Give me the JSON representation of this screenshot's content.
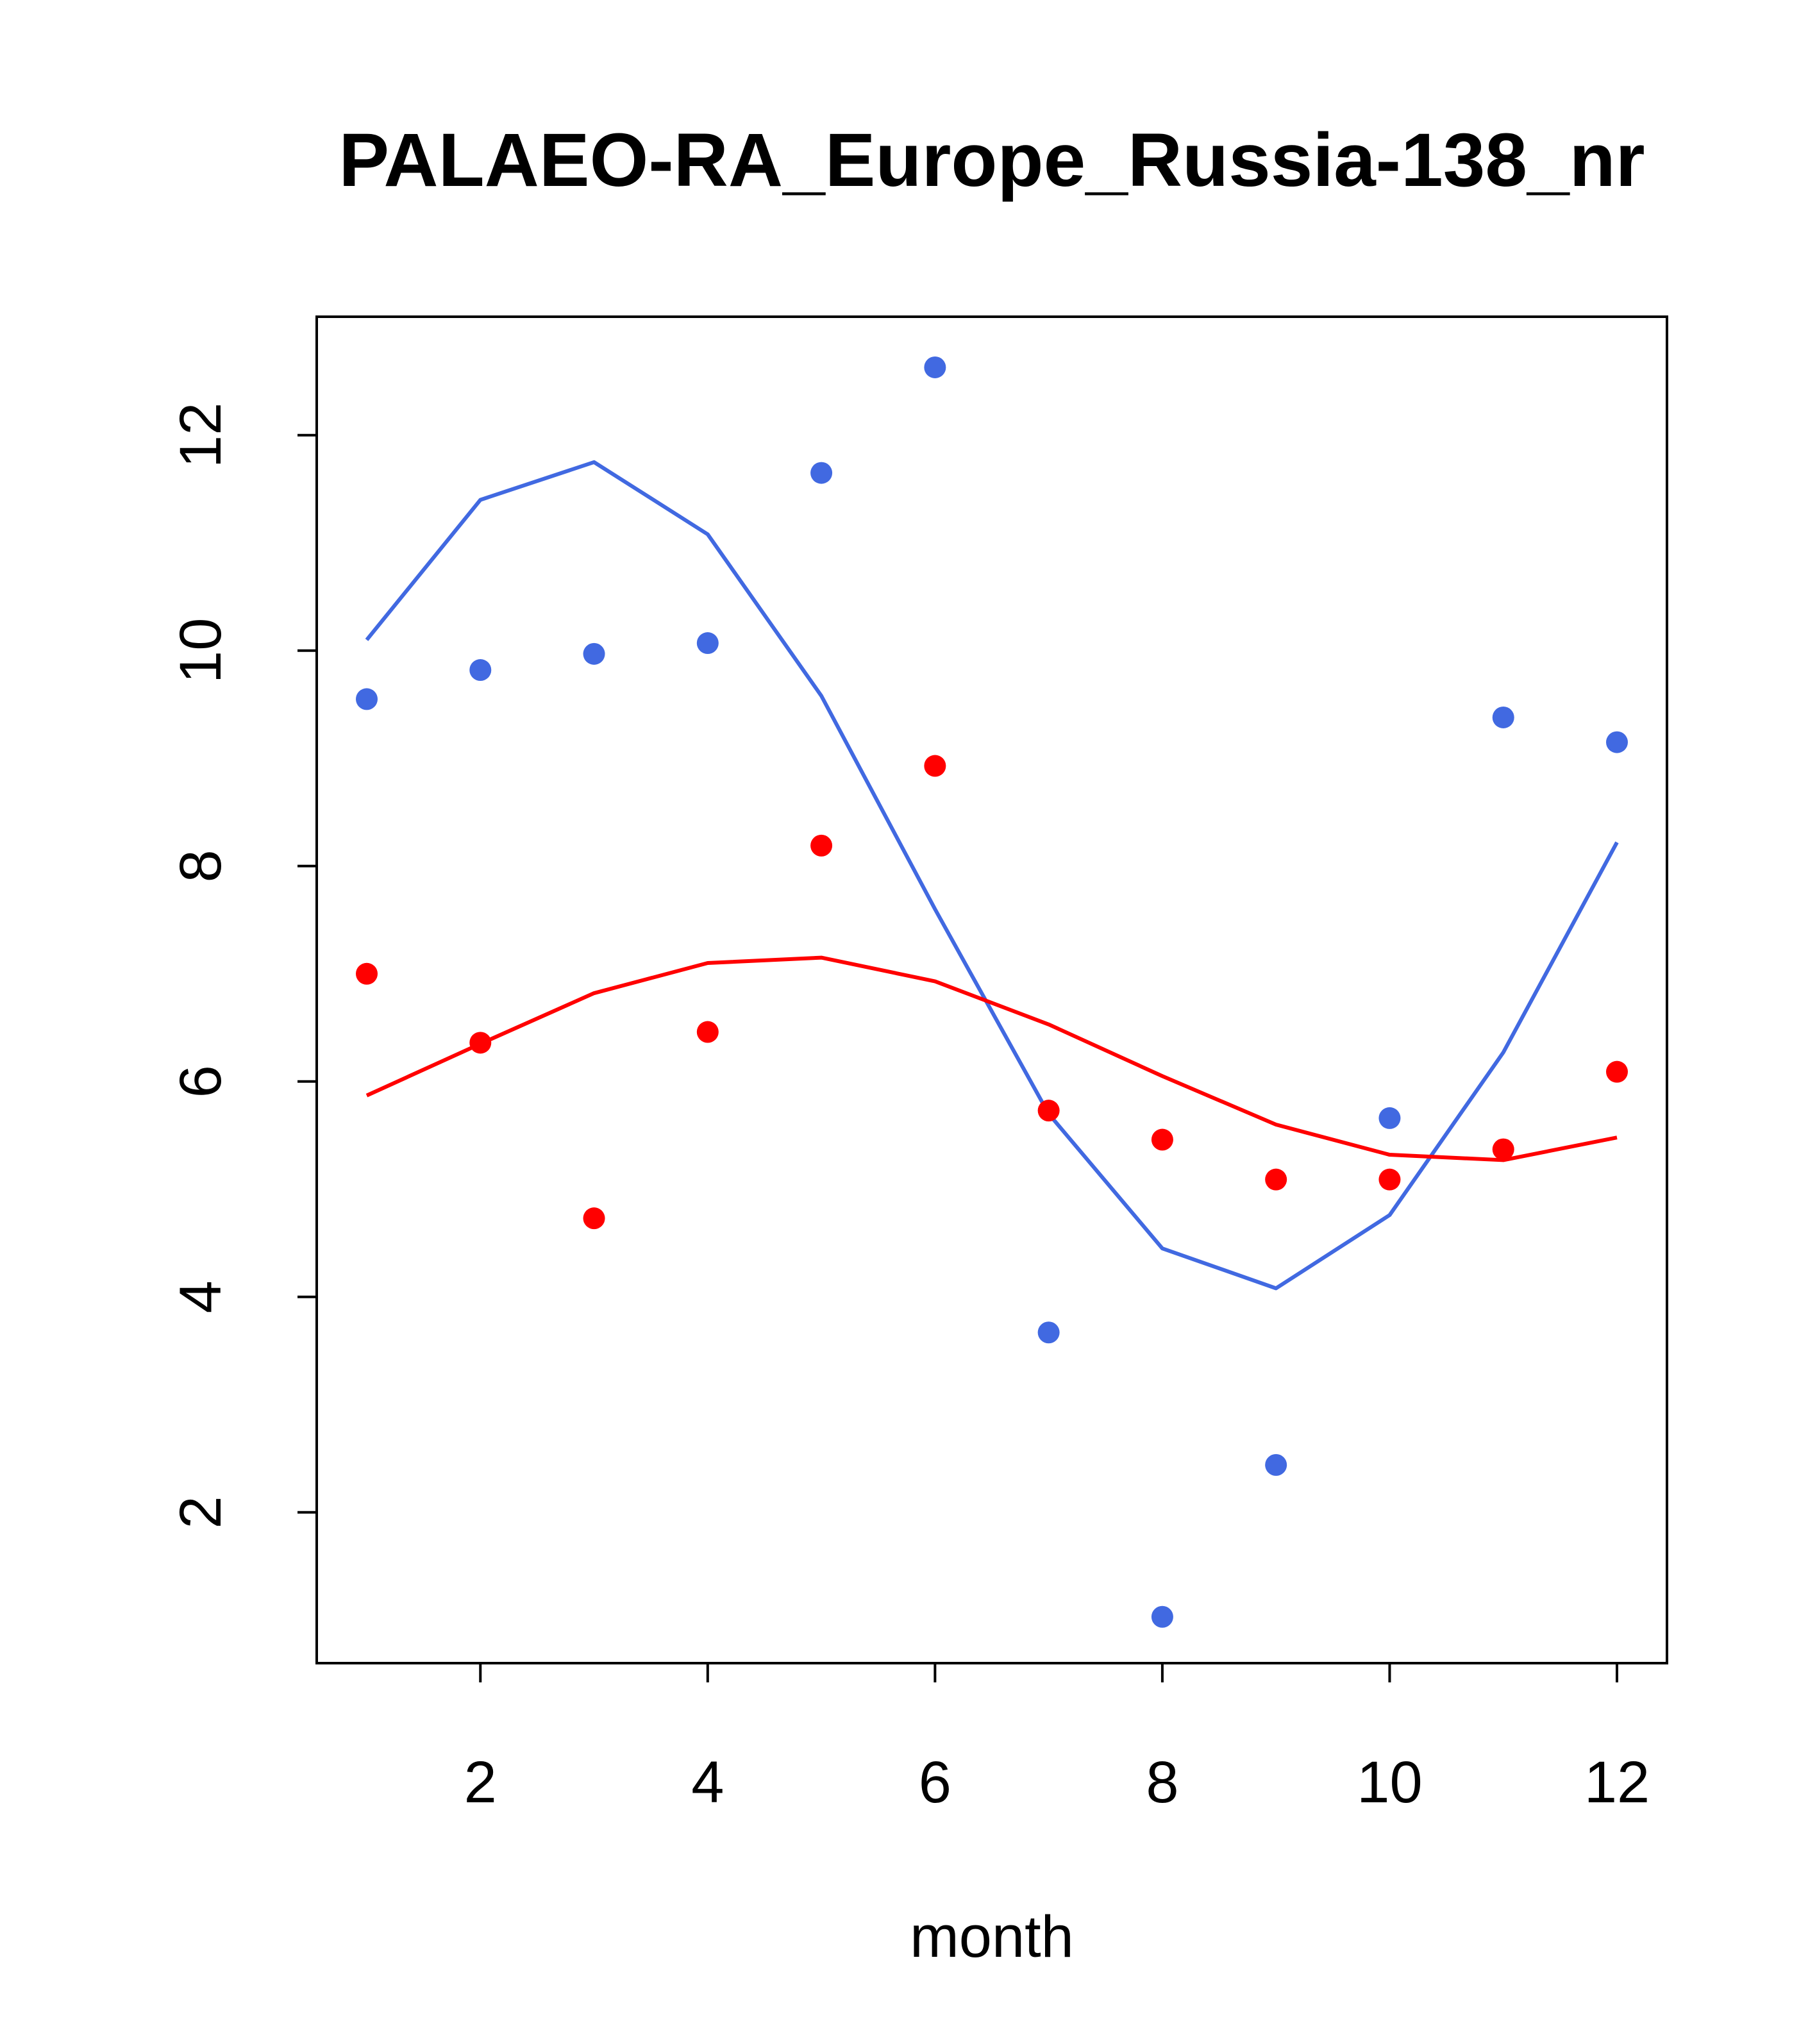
{
  "chart_data": {
    "type": "scatter",
    "title": "PALAEO-RA_Europe_Russia-138_nr",
    "xlabel": "month",
    "ylabel": "",
    "xlim": [
      0.56,
      12.44
    ],
    "ylim": [
      0.6,
      13.1
    ],
    "xticks": [
      2,
      4,
      6,
      8,
      10,
      12
    ],
    "yticks": [
      2,
      4,
      6,
      8,
      10,
      12
    ],
    "grid": false,
    "x": [
      1,
      2,
      3,
      4,
      5,
      6,
      7,
      8,
      9,
      10,
      11,
      12
    ],
    "series": [
      {
        "name": "blue points",
        "kind": "points",
        "color": "#4169E1",
        "values": [
          9.55,
          9.82,
          9.97,
          10.07,
          11.65,
          12.63,
          3.67,
          1.03,
          2.44,
          5.66,
          9.38,
          9.15
        ]
      },
      {
        "name": "blue curve",
        "kind": "line",
        "color": "#4169E1",
        "values": [
          10.1,
          11.4,
          11.75,
          11.08,
          9.58,
          7.6,
          5.7,
          4.45,
          4.08,
          4.76,
          6.27,
          8.22
        ]
      },
      {
        "name": "red points",
        "kind": "points",
        "color": "#FF0000",
        "values": [
          7.0,
          6.36,
          4.73,
          6.46,
          8.19,
          8.93,
          5.73,
          5.46,
          5.09,
          5.09,
          5.37,
          6.09
        ]
      },
      {
        "name": "red curve",
        "kind": "line",
        "color": "#FF0000",
        "values": [
          5.87,
          6.35,
          6.82,
          7.1,
          7.15,
          6.93,
          6.53,
          6.05,
          5.6,
          5.32,
          5.27,
          5.48
        ]
      }
    ]
  }
}
